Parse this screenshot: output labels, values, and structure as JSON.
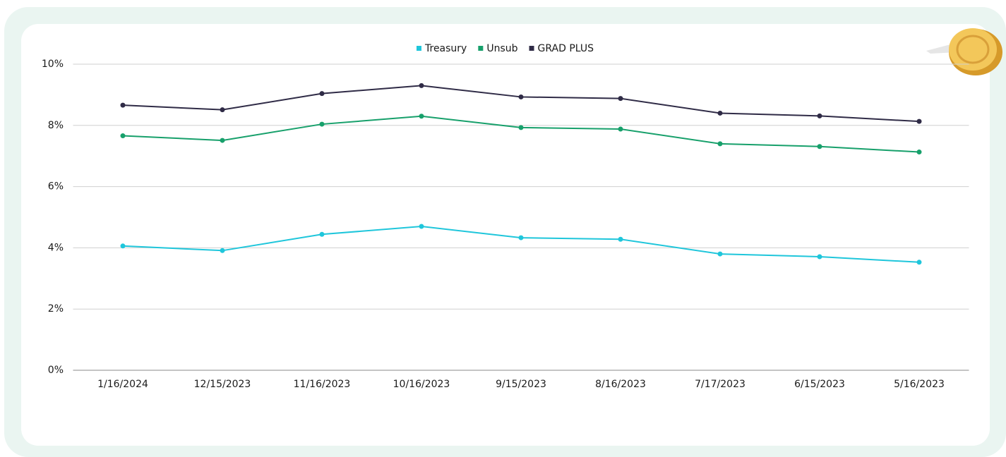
{
  "chart_data": {
    "type": "line",
    "categories": [
      "1/16/2024",
      "12/15/2023",
      "11/16/2023",
      "10/16/2023",
      "9/15/2023",
      "8/16/2023",
      "7/17/2023",
      "6/15/2023",
      "5/16/2023"
    ],
    "series": [
      {
        "name": "Treasury",
        "color": "#1fc6db",
        "values": [
          4.06,
          3.91,
          4.44,
          4.7,
          4.33,
          4.28,
          3.8,
          3.71,
          3.53
        ]
      },
      {
        "name": "Unsub",
        "color": "#17a06b",
        "values": [
          7.66,
          7.51,
          8.04,
          8.3,
          7.93,
          7.88,
          7.4,
          7.31,
          7.13
        ]
      },
      {
        "name": "GRAD PLUS",
        "color": "#2f2b46",
        "values": [
          8.66,
          8.51,
          9.04,
          9.3,
          8.93,
          8.88,
          8.4,
          8.31,
          8.13
        ]
      }
    ],
    "ylim": [
      0,
      10
    ],
    "yticks": [
      {
        "value": 0,
        "label": "0%"
      },
      {
        "value": 2,
        "label": "2%"
      },
      {
        "value": 4,
        "label": "4%"
      },
      {
        "value": 6,
        "label": "6%"
      },
      {
        "value": 8,
        "label": "8%"
      },
      {
        "value": 10,
        "label": "10%"
      }
    ],
    "grid": true,
    "legend": "top"
  }
}
